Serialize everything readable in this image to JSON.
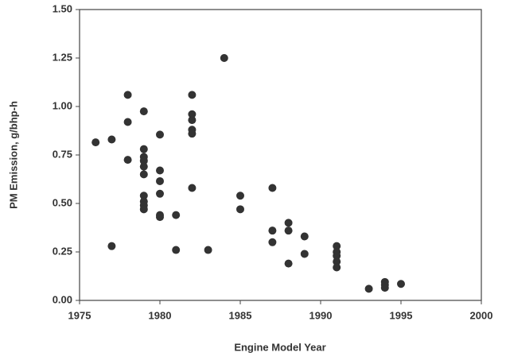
{
  "chart_data": {
    "type": "scatter",
    "x_label": "Engine Model Year",
    "y_label": "PM Emission, g/bhp-h",
    "color": "#333333",
    "x": [
      1976,
      1977,
      1977,
      1978,
      1978,
      1978,
      1979,
      1979,
      1979,
      1979,
      1979,
      1979,
      1979,
      1979,
      1979,
      1979,
      1980,
      1980,
      1980,
      1980,
      1980,
      1980,
      1981,
      1981,
      1982,
      1982,
      1982,
      1982,
      1982,
      1982,
      1983,
      1984,
      1985,
      1985,
      1987,
      1987,
      1987,
      1988,
      1988,
      1988,
      1989,
      1989,
      1991,
      1991,
      1991,
      1991,
      1991,
      1993,
      1994,
      1994,
      1994,
      1995
    ],
    "values": [
      0.815,
      0.83,
      0.28,
      1.06,
      0.92,
      0.725,
      0.975,
      0.78,
      0.74,
      0.72,
      0.69,
      0.65,
      0.54,
      0.51,
      0.49,
      0.47,
      0.855,
      0.67,
      0.615,
      0.55,
      0.44,
      0.43,
      0.44,
      0.26,
      1.06,
      0.96,
      0.93,
      0.88,
      0.86,
      0.58,
      0.26,
      1.25,
      0.54,
      0.47,
      0.58,
      0.36,
      0.3,
      0.4,
      0.36,
      0.19,
      0.33,
      0.24,
      0.28,
      0.25,
      0.23,
      0.2,
      0.17,
      0.06,
      0.095,
      0.08,
      0.065,
      0.085
    ],
    "xlim": [
      1975,
      2000
    ],
    "xticks": [
      1975,
      1980,
      1985,
      1990,
      1995,
      2000
    ],
    "ylim": [
      0,
      1.5
    ],
    "yticks": [
      {
        "value": 0,
        "label": "0.00"
      },
      {
        "value": 0.25,
        "label": "0.25"
      },
      {
        "value": 0.5,
        "label": "0.50"
      },
      {
        "value": 0.75,
        "label": "0.75"
      },
      {
        "value": 1,
        "label": "1.00"
      },
      {
        "value": 1.25,
        "label": "1.25"
      },
      {
        "value": 1.5,
        "label": "1.50"
      }
    ]
  }
}
